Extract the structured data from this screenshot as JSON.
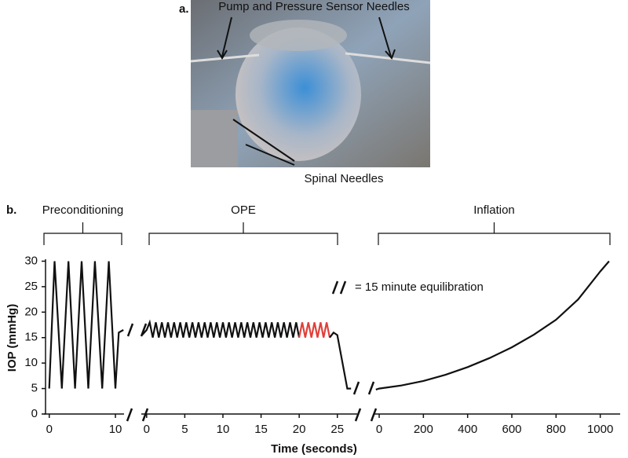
{
  "figure": {
    "panel_a": {
      "label": "a.",
      "top_label": "Pump and Pressure Sensor Needles",
      "bottom_label": "Spinal Needles"
    },
    "panel_b_label": "b."
  },
  "chart_data": {
    "type": "line",
    "ylabel": "IOP (mmHg)",
    "xlabel": "Time (seconds)",
    "annotation": "= 15 minute equilibration",
    "ylim": [
      0,
      31
    ],
    "yticks": [
      0,
      5,
      10,
      15,
      20,
      25,
      30
    ],
    "panels": [
      {
        "label": "Preconditioning",
        "xlim": [
          -0.8,
          11.3
        ],
        "xticks": [
          0,
          10
        ],
        "series": [
          {
            "color": "#111111",
            "x": [
              0,
              0.8,
              1.9,
              2.9,
              3.9,
              4.9,
              5.9,
              6.9,
              8,
              9,
              10,
              10.5,
              11.2
            ],
            "values": [
              5,
              30,
              5,
              30,
              5,
              30,
              5,
              30,
              5,
              30,
              5,
              16,
              16.5
            ]
          }
        ]
      },
      {
        "label": "OPE",
        "xlim": [
          -0.7,
          27.6
        ],
        "xticks": [
          0,
          5,
          10,
          15,
          20,
          25
        ],
        "series": [
          {
            "color": "#111111",
            "x": [
              -0.6,
              0,
              0.4,
              0.8,
              1.2,
              1.6,
              2,
              2.4,
              2.8,
              3.2,
              3.6,
              4,
              4.4,
              4.8,
              5.2,
              5.6,
              6,
              6.4,
              6.8,
              7.2,
              7.6,
              8,
              8.4,
              8.8,
              9.2,
              9.6,
              10,
              10.4,
              10.8,
              11.2,
              11.6,
              12,
              12.4,
              12.8,
              13.2,
              13.6,
              14,
              14.4,
              14.8,
              15.2,
              15.6,
              16,
              16.4,
              16.8,
              17.2,
              17.6,
              18,
              18.4,
              18.8,
              19.2,
              19.6,
              20
            ],
            "values": [
              15.5,
              16.5,
              18,
              15,
              18,
              15,
              18,
              15,
              18,
              15,
              18,
              15,
              18,
              15,
              18,
              15,
              18,
              15,
              18,
              15,
              18,
              15,
              18,
              15,
              18,
              15,
              18,
              15,
              18,
              15,
              18,
              15,
              18,
              15,
              18,
              15,
              18,
              15,
              18,
              15,
              18,
              15,
              18,
              15,
              18,
              15,
              18,
              15,
              18,
              15,
              18,
              15
            ]
          },
          {
            "color": "#e0403a",
            "x": [
              20,
              20.4,
              20.8,
              21.2,
              21.6,
              22,
              22.4,
              22.8,
              23.2,
              23.6,
              24
            ],
            "values": [
              15,
              18,
              15,
              18,
              15,
              18,
              15,
              18,
              15,
              18,
              15
            ]
          },
          {
            "color": "#111111",
            "x": [
              24,
              24.5,
              25,
              26.3,
              26.8
            ],
            "values": [
              15,
              16,
              15.5,
              5,
              5
            ]
          }
        ]
      },
      {
        "label": "Inflation",
        "xlim": [
          -25,
          1090
        ],
        "xticks": [
          0,
          200,
          400,
          600,
          800,
          1000
        ],
        "series": [
          {
            "color": "#111111",
            "x": [
              -15,
              0,
              100,
              200,
              300,
              400,
              500,
              600,
              700,
              800,
              900,
              1000,
              1040
            ],
            "values": [
              4.8,
              5,
              5.6,
              6.5,
              7.7,
              9.2,
              11,
              13.1,
              15.6,
              18.5,
              22.5,
              28,
              30
            ]
          }
        ]
      }
    ]
  }
}
